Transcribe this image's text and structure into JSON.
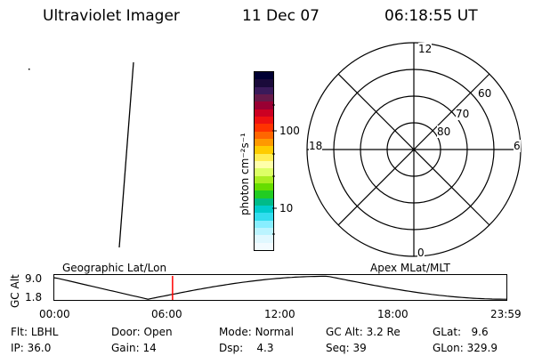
{
  "header": {
    "instrument": "Ultraviolet Imager",
    "date": "11 Dec 07",
    "time": "06:18:55 UT"
  },
  "colorbar": {
    "label": "photon cm⁻²s⁻¹",
    "ticks": [
      "100",
      "10"
    ],
    "colors": [
      "#000033",
      "#1a0a3a",
      "#3a1a5a",
      "#661a4a",
      "#990033",
      "#cc0022",
      "#ee1111",
      "#ff3300",
      "#ff6600",
      "#ff9900",
      "#ffcc00",
      "#ffee55",
      "#ffffaa",
      "#ddff66",
      "#aaee22",
      "#66dd00",
      "#22cc22",
      "#00bb88",
      "#00cccc",
      "#33ddee",
      "#88eeff",
      "#bbf4ff",
      "#e0f8ff",
      "#f2fbff"
    ]
  },
  "polar": {
    "mlt_labels": {
      "top": "12",
      "left": "18",
      "right": "6",
      "bottom": "0"
    },
    "lat_labels": [
      "60",
      "70",
      "80"
    ]
  },
  "orbit": {
    "left_label": "Geographic Lat/Lon",
    "right_label": "Apex MLat/MLT",
    "y_axis_label": "GC Alt",
    "y_ticks": [
      "9.0",
      "1.8"
    ],
    "x_ticks": [
      "00:00",
      "06:00",
      "12:00",
      "18:00",
      "23:59"
    ],
    "current_time_hours": 6.3
  },
  "info": {
    "row1": [
      {
        "label": "Flt:",
        "value": "LBHL"
      },
      {
        "label": "Door:",
        "value": "Open"
      },
      {
        "label": "Mode:",
        "value": "Normal"
      },
      {
        "label": "GC Alt:",
        "value": "3.2 Re"
      },
      {
        "label": "GLat:",
        "value": "9.6"
      }
    ],
    "row2": [
      {
        "label": "IP:",
        "value": "36.0"
      },
      {
        "label": "Gain:",
        "value": "14"
      },
      {
        "label": "Dsp:",
        "value": "4.3"
      },
      {
        "label": "Seq:",
        "value": "39"
      },
      {
        "label": "GLon:",
        "value": "329.9"
      }
    ]
  }
}
